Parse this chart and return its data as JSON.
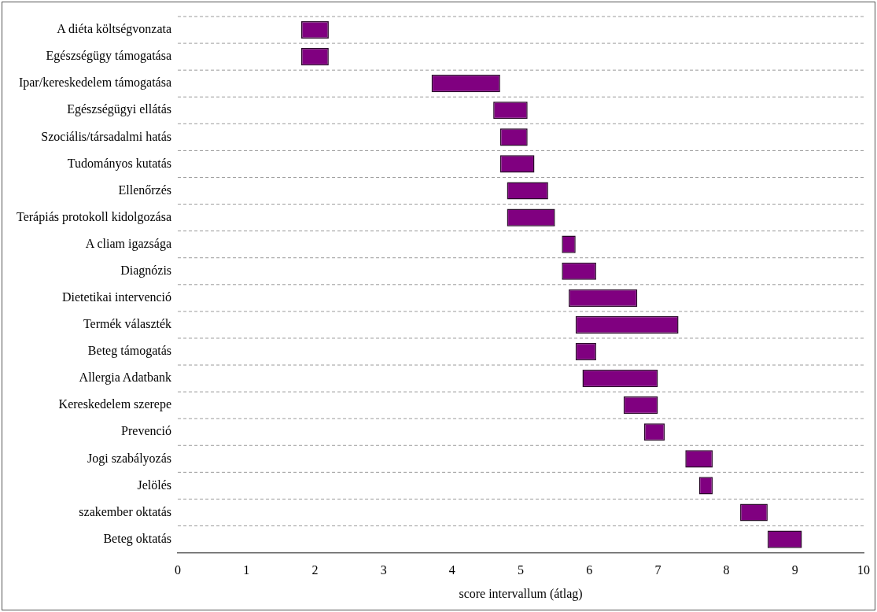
{
  "chart_data": {
    "type": "bar",
    "orientation": "horizontal",
    "xlabel": "score intervallum (átlag)",
    "categories": [
      "A diéta költségvonzata",
      "Egészségügy támogatása",
      "Ipar/kereskedelem támogatása",
      "Egészségügyi ellátás",
      "Szociális/társadalmi hatás",
      "Tudományos kutatás",
      "Ellenőrzés",
      "Terápiás protokoll kidolgozása",
      "A cliam igazsága",
      "Diagnózis",
      "Dietetikai intervenció",
      "Termék választék",
      "Beteg támogatás",
      "Allergia Adatbank",
      "Kereskedelem szerepe",
      "Prevenció",
      "Jogi szabályozás",
      "Jelölés",
      "szakember oktatás",
      "Beteg oktatás"
    ],
    "base": [
      1.8,
      1.8,
      3.7,
      4.6,
      4.7,
      4.7,
      4.8,
      4.8,
      5.6,
      5.6,
      5.7,
      5.8,
      5.8,
      5.9,
      6.5,
      6.8,
      7.4,
      7.6,
      8.2,
      8.6
    ],
    "values": [
      0.4,
      0.4,
      1.0,
      0.5,
      0.4,
      0.5,
      0.6,
      0.7,
      0.2,
      0.5,
      1.0,
      1.5,
      0.3,
      1.1,
      0.5,
      0.3,
      0.4,
      0.2,
      0.4,
      0.5
    ],
    "color": "#800080",
    "xlim": [
      0,
      10
    ],
    "xticks": [
      0,
      1,
      2,
      3,
      4,
      5,
      6,
      7,
      8,
      9,
      10
    ],
    "grid": "y",
    "legend": false
  }
}
